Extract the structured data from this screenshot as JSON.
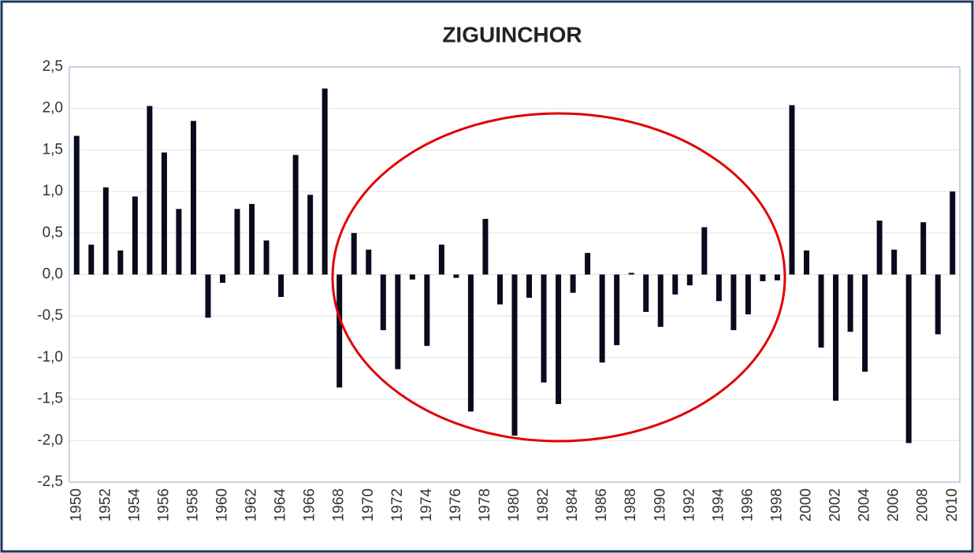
{
  "chart_data": {
    "type": "bar",
    "title": "ZIGUINCHOR",
    "categories": [
      "1950",
      null,
      "1952",
      null,
      "1954",
      null,
      "1956",
      null,
      "1958",
      null,
      "1960",
      null,
      "1962",
      null,
      "1964",
      null,
      "1966",
      null,
      "1968",
      null,
      "1970",
      null,
      "1972",
      null,
      "1974",
      null,
      "1976",
      null,
      "1978",
      null,
      "1980",
      null,
      "1982",
      null,
      "1984",
      null,
      "1986",
      null,
      "1988",
      null,
      "1990",
      null,
      "1992",
      null,
      "1994",
      null,
      "1996",
      null,
      "1998",
      null,
      "2000",
      null,
      "2002",
      null,
      "2004",
      null,
      "2006",
      null,
      "2008",
      null,
      "2010"
    ],
    "values": [
      1.67,
      0.36,
      1.05,
      0.29,
      0.94,
      2.03,
      1.47,
      0.79,
      1.85,
      -0.52,
      -0.1,
      0.79,
      0.85,
      0.41,
      -0.27,
      1.44,
      0.96,
      2.24,
      -1.36,
      0.5,
      0.3,
      -0.67,
      -1.14,
      -0.06,
      -0.86,
      0.36,
      -0.04,
      -1.65,
      0.67,
      -0.36,
      -1.94,
      -0.28,
      -1.3,
      -1.56,
      -0.22,
      0.26,
      -1.06,
      -0.85,
      0.02,
      -0.45,
      -0.63,
      -0.24,
      -0.13,
      0.57,
      -0.32,
      -0.67,
      -0.48,
      -0.08,
      -0.07,
      2.04,
      0.29,
      -0.88,
      -1.52,
      -0.69,
      -1.17,
      0.65,
      0.3,
      -2.03,
      0.63,
      -0.72,
      1.0
    ],
    "color": "#0a0a1e",
    "ylim": [
      -2.5,
      2.5
    ],
    "yticks": [
      {
        "value": -2.5,
        "label": "-2,5"
      },
      {
        "value": -2.0,
        "label": "-2,0"
      },
      {
        "value": -1.5,
        "label": "-1,5"
      },
      {
        "value": -1.0,
        "label": "-1,0"
      },
      {
        "value": -0.5,
        "label": "-0,5"
      },
      {
        "value": 0.0,
        "label": "0,0"
      },
      {
        "value": 0.5,
        "label": "0,5"
      },
      {
        "value": 1.0,
        "label": "1,0"
      },
      {
        "value": 1.5,
        "label": "1,5"
      },
      {
        "value": 2.0,
        "label": "2,0"
      },
      {
        "value": 2.5,
        "label": "2,5"
      }
    ],
    "grid": true
  }
}
